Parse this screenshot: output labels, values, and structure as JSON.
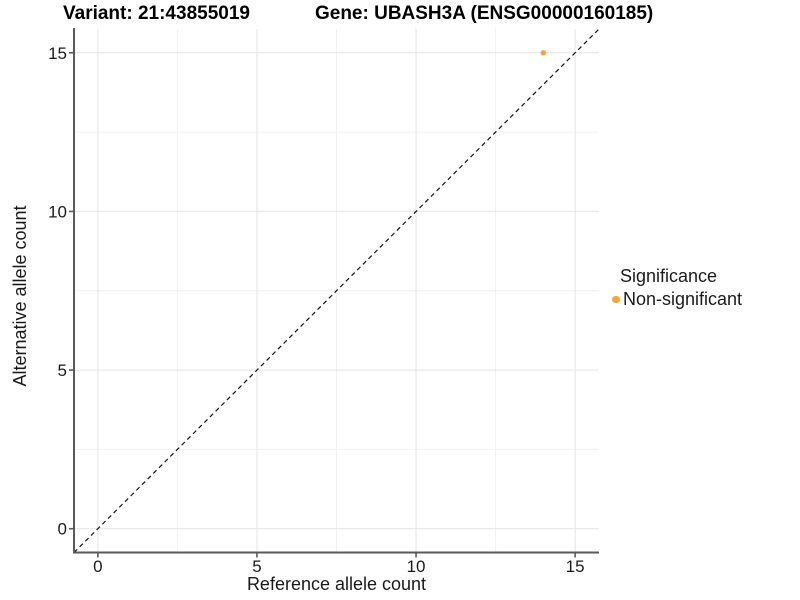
{
  "chart_data": {
    "type": "scatter",
    "titles": {
      "variant": "Variant: 21:43855019",
      "gene": "Gene: UBASH3A (ENSG00000160185)"
    },
    "xlabel": "Reference allele count",
    "ylabel": "Alternative allele count",
    "xlim": [
      -0.75,
      15.75
    ],
    "ylim": [
      -0.75,
      15.75
    ],
    "x_ticks": [
      0,
      5,
      10,
      15
    ],
    "y_ticks": [
      0,
      5,
      10,
      15
    ],
    "x_minor_ticks": [
      2.5,
      7.5,
      12.5
    ],
    "y_minor_ticks": [
      2.5,
      7.5,
      12.5
    ],
    "grid": true,
    "identity_line": {
      "style": "dashed",
      "color": "#111111",
      "from": [
        -0.75,
        -0.75
      ],
      "to": [
        15.75,
        15.75
      ]
    },
    "series": [
      {
        "name": "Non-significant",
        "color": "#F8A43C",
        "points": [
          {
            "x": 14,
            "y": 15
          }
        ]
      }
    ],
    "legend": {
      "title": "Significance",
      "position": "right",
      "entries": [
        {
          "label": "Non-significant",
          "color": "#F8A43C"
        }
      ]
    },
    "colors": {
      "axis": "#595959",
      "grid_major": "#E4E4E4",
      "grid_minor": "#F1F1F1",
      "text": "#1A1A1A",
      "title_text": "#000000"
    }
  }
}
